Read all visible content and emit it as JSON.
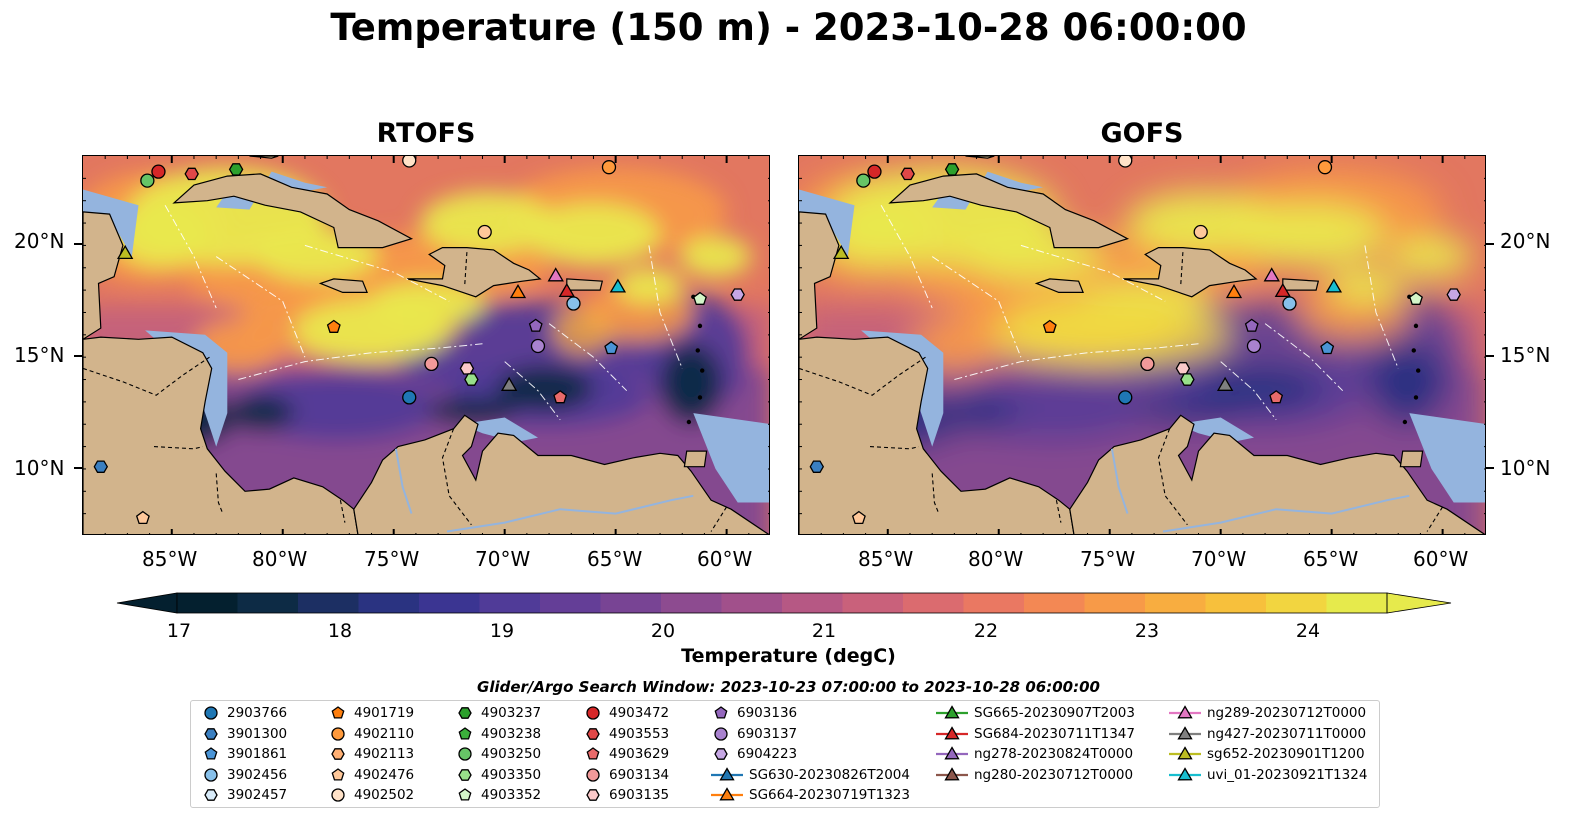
{
  "title": "Temperature (150 m) - 2023-10-28 06:00:00",
  "panels": [
    {
      "title": "RTOFS"
    },
    {
      "title": "GOFS"
    }
  ],
  "axes": {
    "x_ticks": [
      "85°W",
      "80°W",
      "75°W",
      "70°W",
      "65°W",
      "60°W"
    ],
    "y_ticks": [
      "20°N",
      "15°N",
      "10°N"
    ]
  },
  "colorbar": {
    "label": "Temperature (degC)",
    "ticks": [
      "17",
      "18",
      "19",
      "20",
      "21",
      "22",
      "23",
      "24"
    ],
    "colors": [
      "#04202f",
      "#0d2b45",
      "#1c2f63",
      "#2a3381",
      "#3b3592",
      "#503b98",
      "#643e97",
      "#784494",
      "#8d4b90",
      "#a1508b",
      "#b65884",
      "#c9617b",
      "#db6b6f",
      "#ea7862",
      "#f38854",
      "#f79a48",
      "#f8ad40",
      "#f7c03c",
      "#f2d540",
      "#e6ea4c"
    ]
  },
  "legend": {
    "title": "Glider/Argo Search Window: 2023-10-23 07:00:00 to 2023-10-28 06:00:00",
    "argo": [
      {
        "label": "2903766",
        "color": "#1f77b4",
        "shape": "circle"
      },
      {
        "label": "3901300",
        "color": "#3a7fc1",
        "shape": "hexagon"
      },
      {
        "label": "3901861",
        "color": "#4a94d6",
        "shape": "pentagon"
      },
      {
        "label": "3902456",
        "color": "#87c0ea",
        "shape": "circle"
      },
      {
        "label": "3902457",
        "color": "#d8ebf9",
        "shape": "hexagon"
      },
      {
        "label": "4901719",
        "color": "#ff7f0e",
        "shape": "pentagon"
      },
      {
        "label": "4902110",
        "color": "#ff9a3c",
        "shape": "circle"
      },
      {
        "label": "4902113",
        "color": "#ffb074",
        "shape": "hexagon"
      },
      {
        "label": "4902476",
        "color": "#ffc89a",
        "shape": "pentagon"
      },
      {
        "label": "4902502",
        "color": "#ffe2c8",
        "shape": "circle"
      },
      {
        "label": "4903237",
        "color": "#2ca02c",
        "shape": "hexagon"
      },
      {
        "label": "4903238",
        "color": "#3bb03b",
        "shape": "pentagon"
      },
      {
        "label": "4903250",
        "color": "#66c466",
        "shape": "circle"
      },
      {
        "label": "4903350",
        "color": "#98df8a",
        "shape": "hexagon"
      },
      {
        "label": "4903352",
        "color": "#d3f5c9",
        "shape": "pentagon"
      },
      {
        "label": "4903472",
        "color": "#d62728",
        "shape": "circle"
      },
      {
        "label": "4903553",
        "color": "#e04848",
        "shape": "hexagon"
      },
      {
        "label": "4903629",
        "color": "#e86a6a",
        "shape": "pentagon"
      },
      {
        "label": "6903134",
        "color": "#f29a9a",
        "shape": "circle"
      },
      {
        "label": "6903135",
        "color": "#fbc9c9",
        "shape": "hexagon"
      },
      {
        "label": "6903136",
        "color": "#9467bd",
        "shape": "pentagon"
      },
      {
        "label": "6903137",
        "color": "#a982cf",
        "shape": "circle"
      },
      {
        "label": "6904223",
        "color": "#c6a7e4",
        "shape": "hexagon"
      }
    ],
    "gliders": [
      {
        "label": "SG630-20230826T2004",
        "color": "#1f77b4"
      },
      {
        "label": "SG664-20230719T1323",
        "color": "#ff7f0e"
      },
      {
        "label": "SG665-20230907T2003",
        "color": "#2ca02c"
      },
      {
        "label": "SG684-20230711T1347",
        "color": "#d62728"
      },
      {
        "label": "ng278-20230824T0000",
        "color": "#9467bd"
      },
      {
        "label": "ng280-20230712T0000",
        "color": "#8c564b"
      },
      {
        "label": "ng289-20230712T0000",
        "color": "#e377c2"
      },
      {
        "label": "ng427-20230711T0000",
        "color": "#7f7f7f"
      },
      {
        "label": "sg652-20230901T1200",
        "color": "#bcbd22"
      },
      {
        "label": "uvi_01-20230921T1324",
        "color": "#17becf"
      }
    ]
  },
  "map_colors": {
    "land": "#d2b48c",
    "shelf": "#94b4de",
    "deep_pacific": "#062435"
  }
}
